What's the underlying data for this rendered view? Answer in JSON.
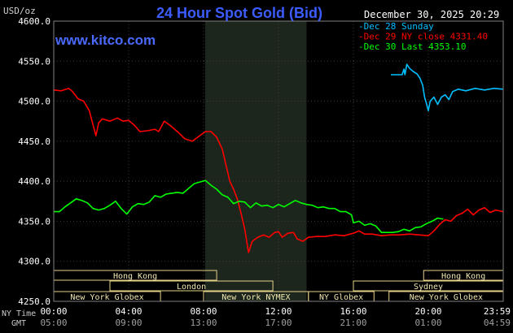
{
  "chart_data": {
    "type": "line",
    "title": "24 Hour Spot Gold (Bid)",
    "watermark": "www.kitco.com",
    "datetime": "December 30, 2025 20:29",
    "ylabel": "USD/oz",
    "ylim": [
      4250,
      4600
    ],
    "yticks": [
      "4600.0",
      "4550.0",
      "4500.0",
      "4450.0",
      "4400.0",
      "4350.0",
      "4300.0",
      "4250.0"
    ],
    "x_domain": [
      0,
      24
    ],
    "xticks": [
      {
        "h": 0,
        "ny": "00:00",
        "gmt": "05:00"
      },
      {
        "h": 4,
        "ny": "04:00",
        "gmt": "09:00"
      },
      {
        "h": 8,
        "ny": "08:00",
        "gmt": "13:00"
      },
      {
        "h": 12,
        "ny": "12:00",
        "gmt": "17:00"
      },
      {
        "h": 16,
        "ny": "16:00",
        "gmt": "21:00"
      },
      {
        "h": 20,
        "ny": "20:00",
        "gmt": "01:00"
      },
      {
        "h": 24,
        "ny": "23:59",
        "gmt": "04:59"
      }
    ],
    "x_row_labels": {
      "ny": "NY Time",
      "gmt": "GMT"
    },
    "shaded_range": [
      8.08,
      13.5
    ],
    "grid": true,
    "legend_position": "top-right",
    "series": [
      {
        "name": "Dec 28 Sunday",
        "color": "#00BFFF",
        "points": [
          [
            18.0,
            4533
          ],
          [
            18.6,
            4533
          ],
          [
            18.7,
            4540
          ],
          [
            18.75,
            4533
          ],
          [
            18.85,
            4546
          ],
          [
            19.0,
            4541
          ],
          [
            19.2,
            4537
          ],
          [
            19.4,
            4534
          ],
          [
            19.55,
            4529
          ],
          [
            19.7,
            4520
          ],
          [
            19.8,
            4505
          ],
          [
            19.9,
            4497
          ],
          [
            20.0,
            4488
          ],
          [
            20.1,
            4500
          ],
          [
            20.3,
            4505
          ],
          [
            20.5,
            4496
          ],
          [
            20.7,
            4505
          ],
          [
            20.9,
            4508
          ],
          [
            21.1,
            4502
          ],
          [
            21.3,
            4512
          ],
          [
            21.6,
            4515
          ],
          [
            22.0,
            4513
          ],
          [
            22.5,
            4516
          ],
          [
            23.0,
            4514
          ],
          [
            23.5,
            4516
          ],
          [
            24.0,
            4515
          ]
        ]
      },
      {
        "name": "Dec 29 NY close 4331.40",
        "color": "#FF0000",
        "points": [
          [
            0.0,
            4514
          ],
          [
            0.4,
            4513
          ],
          [
            0.8,
            4516
          ],
          [
            1.0,
            4512
          ],
          [
            1.3,
            4503
          ],
          [
            1.6,
            4500
          ],
          [
            1.9,
            4488
          ],
          [
            2.1,
            4470
          ],
          [
            2.25,
            4457
          ],
          [
            2.4,
            4473
          ],
          [
            2.6,
            4478
          ],
          [
            3.0,
            4475
          ],
          [
            3.4,
            4479
          ],
          [
            3.7,
            4475
          ],
          [
            4.0,
            4476
          ],
          [
            4.3,
            4470
          ],
          [
            4.6,
            4462
          ],
          [
            5.0,
            4463
          ],
          [
            5.4,
            4465
          ],
          [
            5.6,
            4462
          ],
          [
            5.9,
            4475
          ],
          [
            6.2,
            4470
          ],
          [
            6.6,
            4462
          ],
          [
            7.0,
            4453
          ],
          [
            7.4,
            4450
          ],
          [
            7.8,
            4457
          ],
          [
            8.1,
            4462
          ],
          [
            8.4,
            4462
          ],
          [
            8.7,
            4455
          ],
          [
            9.0,
            4440
          ],
          [
            9.2,
            4420
          ],
          [
            9.4,
            4400
          ],
          [
            9.6,
            4390
          ],
          [
            9.8,
            4378
          ],
          [
            10.0,
            4360
          ],
          [
            10.2,
            4340
          ],
          [
            10.4,
            4311
          ],
          [
            10.6,
            4325
          ],
          [
            10.9,
            4330
          ],
          [
            11.2,
            4333
          ],
          [
            11.5,
            4330
          ],
          [
            11.8,
            4336
          ],
          [
            12.0,
            4337
          ],
          [
            12.2,
            4330
          ],
          [
            12.5,
            4335
          ],
          [
            12.8,
            4336
          ],
          [
            13.0,
            4328
          ],
          [
            13.3,
            4325
          ],
          [
            13.6,
            4330
          ],
          [
            14.0,
            4331
          ],
          [
            14.5,
            4331
          ],
          [
            15.0,
            4333
          ],
          [
            15.5,
            4332
          ],
          [
            16.0,
            4335
          ],
          [
            16.3,
            4338
          ],
          [
            16.6,
            4334
          ],
          [
            17.0,
            4334
          ],
          [
            17.5,
            4332
          ],
          [
            18.0,
            4333
          ],
          [
            18.5,
            4333
          ],
          [
            19.0,
            4334
          ],
          [
            19.5,
            4333
          ],
          [
            20.0,
            4332
          ],
          [
            20.3,
            4338
          ],
          [
            20.6,
            4346
          ],
          [
            20.9,
            4352
          ],
          [
            21.2,
            4350
          ],
          [
            21.5,
            4357
          ],
          [
            21.8,
            4360
          ],
          [
            22.1,
            4365
          ],
          [
            22.4,
            4358
          ],
          [
            22.7,
            4364
          ],
          [
            23.0,
            4367
          ],
          [
            23.3,
            4361
          ],
          [
            23.6,
            4364
          ],
          [
            24.0,
            4362
          ]
        ]
      },
      {
        "name": "Dec 30 Last 4353.10",
        "color": "#00FF00",
        "points": [
          [
            0.0,
            4362
          ],
          [
            0.3,
            4362
          ],
          [
            0.6,
            4368
          ],
          [
            0.9,
            4373
          ],
          [
            1.2,
            4378
          ],
          [
            1.5,
            4376
          ],
          [
            1.8,
            4373
          ],
          [
            2.1,
            4366
          ],
          [
            2.4,
            4364
          ],
          [
            2.7,
            4366
          ],
          [
            3.0,
            4370
          ],
          [
            3.3,
            4375
          ],
          [
            3.6,
            4366
          ],
          [
            3.9,
            4359
          ],
          [
            4.2,
            4368
          ],
          [
            4.5,
            4372
          ],
          [
            4.8,
            4371
          ],
          [
            5.1,
            4374
          ],
          [
            5.4,
            4382
          ],
          [
            5.7,
            4380
          ],
          [
            6.0,
            4384
          ],
          [
            6.3,
            4385
          ],
          [
            6.6,
            4386
          ],
          [
            6.9,
            4385
          ],
          [
            7.2,
            4391
          ],
          [
            7.5,
            4397
          ],
          [
            7.8,
            4399
          ],
          [
            8.1,
            4401
          ],
          [
            8.4,
            4395
          ],
          [
            8.7,
            4390
          ],
          [
            9.0,
            4383
          ],
          [
            9.3,
            4380
          ],
          [
            9.6,
            4372
          ],
          [
            9.9,
            4375
          ],
          [
            10.2,
            4374
          ],
          [
            10.5,
            4367
          ],
          [
            10.8,
            4373
          ],
          [
            11.1,
            4369
          ],
          [
            11.4,
            4370
          ],
          [
            11.7,
            4367
          ],
          [
            12.0,
            4371
          ],
          [
            12.3,
            4368
          ],
          [
            12.6,
            4372
          ],
          [
            12.9,
            4376
          ],
          [
            13.2,
            4373
          ],
          [
            13.5,
            4371
          ],
          [
            13.8,
            4370
          ],
          [
            14.1,
            4367
          ],
          [
            14.4,
            4368
          ],
          [
            14.7,
            4366
          ],
          [
            15.0,
            4366
          ],
          [
            15.3,
            4362
          ],
          [
            15.6,
            4362
          ],
          [
            15.9,
            4358
          ],
          [
            16.0,
            4348
          ],
          [
            16.3,
            4350
          ],
          [
            16.6,
            4345
          ],
          [
            16.9,
            4347
          ],
          [
            17.2,
            4344
          ],
          [
            17.5,
            4336
          ],
          [
            17.8,
            4336
          ],
          [
            18.1,
            4336
          ],
          [
            18.4,
            4337
          ],
          [
            18.7,
            4340
          ],
          [
            19.0,
            4338
          ],
          [
            19.3,
            4342
          ],
          [
            19.6,
            4343
          ],
          [
            19.9,
            4347
          ],
          [
            20.2,
            4350
          ],
          [
            20.5,
            4354
          ],
          [
            20.7,
            4353
          ],
          [
            20.8,
            4353
          ]
        ]
      }
    ],
    "sessions": [
      {
        "label": "Hong Kong",
        "start": 0.0,
        "end": 8.7,
        "row": 0
      },
      {
        "label": "Hong Kong",
        "start": 19.75,
        "end": 24.0,
        "row": 0
      },
      {
        "label": "London",
        "start": 3.0,
        "end": 11.7,
        "row": 1
      },
      {
        "label": "Sydney",
        "start": 16.0,
        "end": 24.0,
        "row": 1
      },
      {
        "label": "New York Globex",
        "start": 0.0,
        "end": 5.7,
        "row": 2
      },
      {
        "label": "New York NYMEX",
        "start": 8.0,
        "end": 13.6,
        "row": 2
      },
      {
        "label": "NY Globex",
        "start": 13.6,
        "end": 17.1,
        "row": 2
      },
      {
        "label": "New York Globex",
        "start": 17.9,
        "end": 24.0,
        "row": 2
      }
    ]
  }
}
